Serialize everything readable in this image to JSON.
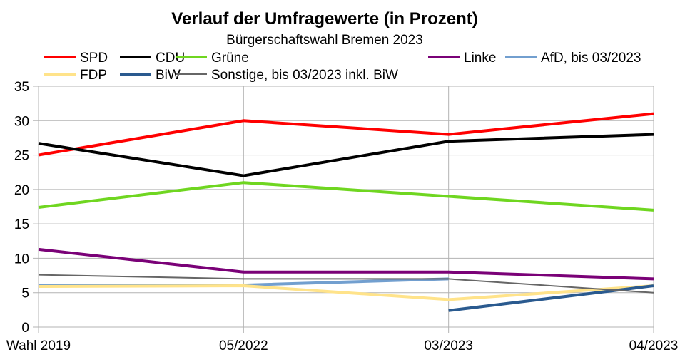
{
  "chart_data": {
    "type": "line",
    "title": "Verlauf der Umfragewerte (in Prozent)",
    "subtitle": "Bürgerschaftswahl Bremen 2023",
    "xlabel": "",
    "ylabel": "",
    "categories": [
      "Wahl 2019",
      "05/2022",
      "03/2023",
      "04/2023"
    ],
    "ylim": [
      0,
      35
    ],
    "yticks": [
      0,
      5,
      10,
      15,
      20,
      25,
      30,
      35
    ],
    "grid": true,
    "legend_position": "top",
    "series": [
      {
        "name": "SPD",
        "color": "#ff0000",
        "width": 4,
        "values": [
          25,
          30,
          28,
          31
        ]
      },
      {
        "name": "CDU",
        "color": "#000000",
        "width": 4,
        "values": [
          26.7,
          22,
          27,
          28
        ]
      },
      {
        "name": "Grüne",
        "color": "#6fd620",
        "width": 4,
        "values": [
          17.4,
          21,
          19,
          17
        ]
      },
      {
        "name": "Linke",
        "color": "#7a0177",
        "width": 4,
        "values": [
          11.3,
          8,
          8,
          7
        ]
      },
      {
        "name": "AfD, bis 03/2023",
        "color": "#729fcf",
        "width": 4,
        "values": [
          6.1,
          6.1,
          7,
          null
        ]
      },
      {
        "name": "FDP",
        "color": "#ffe38a",
        "width": 4,
        "values": [
          5.9,
          6,
          4,
          6
        ]
      },
      {
        "name": "BiW",
        "color": "#2a5a8f",
        "width": 4,
        "values": [
          null,
          null,
          2.4,
          6
        ]
      },
      {
        "name": "Sonstige, bis 03/2023 inkl. BiW",
        "color": "#666666",
        "width": 2,
        "values": [
          7.6,
          7,
          7,
          5
        ]
      }
    ]
  }
}
